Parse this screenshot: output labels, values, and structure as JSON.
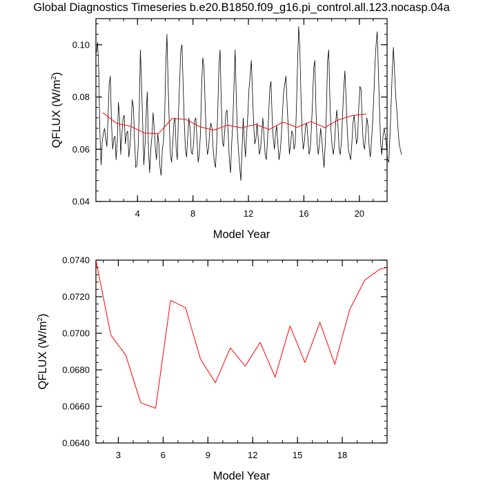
{
  "title": "Global Diagnostics Timeseries b.e20.B1850.f09_g16.pi_control.all.123.nocasp.04a",
  "colors": {
    "monthly": "#000000",
    "annual": "#ff0000",
    "axes": "#000000"
  },
  "chart_data": [
    {
      "type": "line",
      "xlabel": "Model Year",
      "ylabel_main": "QFLUX (W/m",
      "ylabel_sup": "2",
      "ylabel_tail": ")",
      "xlim": [
        1,
        22
      ],
      "ylim": [
        0.04,
        0.11
      ],
      "xticks": [
        4,
        8,
        12,
        16,
        20
      ],
      "yticks": [
        0.04,
        0.06,
        0.08,
        0.1
      ],
      "ytick_labels": [
        "0.04",
        "0.06",
        "0.08",
        "0.10"
      ],
      "grid": false,
      "series": [
        {
          "style": "thin-black",
          "x_start": 1.04,
          "x_step": 0.08333,
          "values": [
            0.097,
            0.101,
            0.09,
            0.066,
            0.054,
            0.063,
            0.066,
            0.068,
            0.064,
            0.061,
            0.072,
            0.085,
            0.088,
            0.07,
            0.06,
            0.064,
            0.065,
            0.056,
            0.063,
            0.078,
            0.072,
            0.058,
            0.066,
            0.072,
            0.073,
            0.062,
            0.066,
            0.067,
            0.057,
            0.061,
            0.069,
            0.079,
            0.076,
            0.063,
            0.053,
            0.054,
            0.06,
            0.074,
            0.098,
            0.085,
            0.07,
            0.054,
            0.062,
            0.073,
            0.082,
            0.06,
            0.051,
            0.06,
            0.065,
            0.074,
            0.068,
            0.06,
            0.056,
            0.066,
            0.062,
            0.053,
            0.05,
            0.06,
            0.063,
            0.072,
            0.093,
            0.104,
            0.085,
            0.07,
            0.058,
            0.055,
            0.062,
            0.07,
            0.072,
            0.06,
            0.056,
            0.074,
            0.086,
            0.098,
            0.1,
            0.085,
            0.07,
            0.06,
            0.057,
            0.065,
            0.072,
            0.068,
            0.059,
            0.058,
            0.062,
            0.071,
            0.072,
            0.064,
            0.055,
            0.058,
            0.066,
            0.084,
            0.095,
            0.092,
            0.078,
            0.065,
            0.058,
            0.06,
            0.067,
            0.07,
            0.068,
            0.06,
            0.055,
            0.053,
            0.062,
            0.075,
            0.092,
            0.098,
            0.078,
            0.063,
            0.061,
            0.067,
            0.074,
            0.075,
            0.066,
            0.056,
            0.051,
            0.062,
            0.07,
            0.084,
            0.098,
            0.08,
            0.066,
            0.059,
            0.053,
            0.048,
            0.06,
            0.072,
            0.063,
            0.057,
            0.066,
            0.073,
            0.083,
            0.088,
            0.094,
            0.082,
            0.07,
            0.062,
            0.064,
            0.07,
            0.064,
            0.058,
            0.06,
            0.066,
            0.072,
            0.065,
            0.058,
            0.056,
            0.063,
            0.073,
            0.083,
            0.086,
            0.073,
            0.064,
            0.06,
            0.066,
            0.069,
            0.062,
            0.056,
            0.059,
            0.065,
            0.074,
            0.082,
            0.085,
            0.088,
            0.077,
            0.068,
            0.058,
            0.062,
            0.067,
            0.066,
            0.06,
            0.062,
            0.075,
            0.092,
            0.107,
            0.099,
            0.08,
            0.066,
            0.06,
            0.063,
            0.069,
            0.07,
            0.064,
            0.058,
            0.06,
            0.068,
            0.078,
            0.091,
            0.094,
            0.075,
            0.062,
            0.058,
            0.062,
            0.068,
            0.064,
            0.058,
            0.053,
            0.062,
            0.074,
            0.094,
            0.098,
            0.08,
            0.067,
            0.061,
            0.058,
            0.062,
            0.07,
            0.075,
            0.069,
            0.06,
            0.058,
            0.063,
            0.073,
            0.083,
            0.09,
            0.08,
            0.068,
            0.06,
            0.058,
            0.056,
            0.062,
            0.07,
            0.073,
            0.068,
            0.062,
            0.064,
            0.076,
            0.084,
            0.083,
            0.07,
            0.062,
            0.06,
            0.066,
            0.072,
            0.069,
            0.061,
            0.057,
            0.063,
            0.07,
            0.08,
            0.092,
            0.1,
            0.105,
            0.09,
            0.075,
            0.062,
            0.058,
            0.065,
            0.068,
            0.065,
            0.061,
            0.056,
            0.055,
            0.065,
            0.077,
            0.09,
            0.099,
            0.09,
            0.08,
            0.075,
            0.068,
            0.062,
            0.06,
            0.058
          ]
        },
        {
          "style": "red",
          "x": [
            1.5,
            2.5,
            3.5,
            4.5,
            5.5,
            6.5,
            7.5,
            8.5,
            9.5,
            10.5,
            11.5,
            12.5,
            13.5,
            14.5,
            15.5,
            16.5,
            17.5,
            18.5,
            19.5,
            20.5
          ],
          "values": [
            0.074,
            0.0699,
            0.0688,
            0.0662,
            0.0659,
            0.0718,
            0.0714,
            0.0686,
            0.0673,
            0.0692,
            0.0682,
            0.0695,
            0.0676,
            0.0704,
            0.0684,
            0.0706,
            0.0683,
            0.0713,
            0.0729,
            0.0735
          ]
        }
      ]
    },
    {
      "type": "line",
      "xlabel": "Model Year",
      "ylabel_main": "QFLUX (W/m",
      "ylabel_sup": "2",
      "ylabel_tail": ")",
      "xlim": [
        1.5,
        21
      ],
      "ylim": [
        0.064,
        0.074
      ],
      "xticks": [
        3,
        6,
        9,
        12,
        15,
        18
      ],
      "yticks": [
        0.064,
        0.066,
        0.068,
        0.07,
        0.072,
        0.074
      ],
      "ytick_labels": [
        "0.0640",
        "0.0660",
        "0.0680",
        "0.0700",
        "0.0720",
        "0.0740"
      ],
      "grid": false,
      "series": [
        {
          "style": "red",
          "x": [
            1.5,
            2.5,
            3.5,
            4.5,
            5.5,
            6.5,
            7.5,
            8.5,
            9.5,
            10.5,
            11.5,
            12.5,
            13.5,
            14.5,
            15.5,
            16.5,
            17.5,
            18.5,
            19.5,
            20.5,
            21.0
          ],
          "values": [
            0.074,
            0.0699,
            0.0688,
            0.0662,
            0.0659,
            0.0718,
            0.0714,
            0.0686,
            0.0673,
            0.0692,
            0.0682,
            0.0695,
            0.0676,
            0.0704,
            0.0684,
            0.0706,
            0.0683,
            0.0713,
            0.0729,
            0.0735,
            0.0736
          ]
        }
      ]
    }
  ]
}
